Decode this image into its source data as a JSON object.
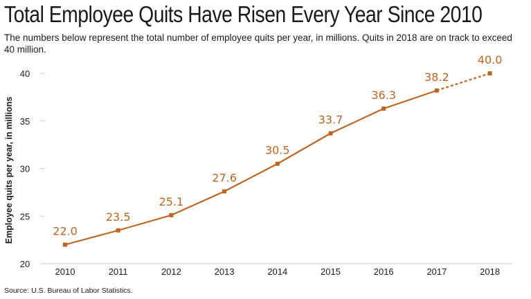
{
  "title": "Total Employee Quits Have Risen Every Year Since 2010",
  "subtitle": "The numbers below represent the total number of employee quits per year, in millions. Quits in 2018 are on track to exceed 40 million.",
  "source": "Source: U.S. Bureau of Labor Statistics.",
  "chart_data": {
    "type": "line",
    "title": "Total Employee Quits Have Risen Every Year Since 2010",
    "xlabel": "",
    "ylabel": "Employee quits per year, in millions",
    "x": [
      "2010",
      "2011",
      "2012",
      "2013",
      "2014",
      "2015",
      "2016",
      "2017",
      "2018"
    ],
    "values": [
      22.0,
      23.5,
      25.1,
      27.6,
      30.5,
      33.7,
      36.3,
      38.2,
      40.0
    ],
    "data_labels": [
      "22.0",
      "23.5",
      "25.1",
      "27.6",
      "30.5",
      "33.7",
      "36.3",
      "38.2",
      "40.0"
    ],
    "projected_from_index": 7,
    "ylim": [
      20,
      40
    ],
    "yticks": [
      20,
      25,
      30,
      35,
      40
    ],
    "grid": false,
    "legend": "none",
    "line_color": "#c0651f"
  }
}
